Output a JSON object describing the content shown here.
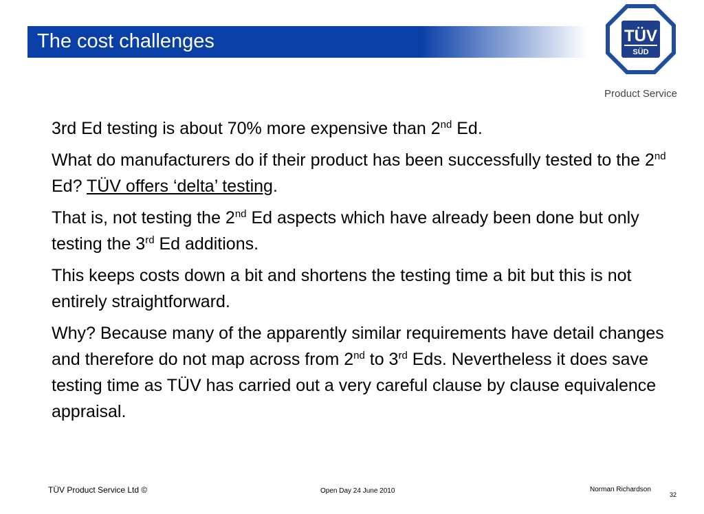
{
  "header": {
    "title": "The cost challenges"
  },
  "logo": {
    "mark_top": "TÜV",
    "mark_bottom": "SÜD",
    "caption": "Product Service"
  },
  "body": {
    "paragraphs": [
      {
        "runs": [
          {
            "text": "3rd Ed testing is about 70% more expensive than 2"
          },
          {
            "sup": "nd"
          },
          {
            "text": " Ed."
          }
        ]
      },
      {
        "runs": [
          {
            "text": "What do manufacturers do if their product has been successfully tested to the 2"
          },
          {
            "sup": "nd"
          },
          {
            "text": " Ed?  "
          },
          {
            "u": "TÜV offers ‘delta’ testing"
          },
          {
            "text": "."
          }
        ]
      },
      {
        "runs": [
          {
            "text": "That is, not testing the 2"
          },
          {
            "sup": "nd"
          },
          {
            "text": " Ed aspects which have already been done but only testing the 3"
          },
          {
            "sup": "rd"
          },
          {
            "text": " Ed additions."
          }
        ]
      },
      {
        "runs": [
          {
            "text": "This keeps costs down a bit and shortens the testing time a bit but this is not entirely straightforward."
          }
        ]
      },
      {
        "runs": [
          {
            "text": "Why?  Because many of the apparently similar requirements have detail changes and therefore do not map across from 2"
          },
          {
            "sup": "nd"
          },
          {
            "text": " to 3"
          },
          {
            "sup": "rd"
          },
          {
            "text": " Eds.  Nevertheless it does save testing time as TÜV has carried out a very careful clause by clause equivalence appraisal."
          }
        ]
      }
    ]
  },
  "footer": {
    "company": "TÜV Product Service Ltd ©",
    "event": "Open Day 24 June 2010",
    "author": "Norman Richardson",
    "page": "32"
  }
}
